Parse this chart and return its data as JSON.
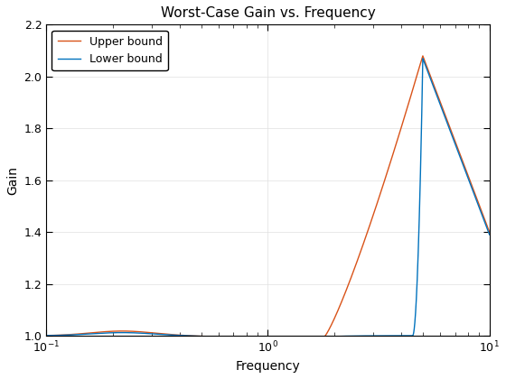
{
  "title": "Worst-Case Gain vs. Frequency",
  "xlabel": "Frequency",
  "ylabel": "Gain",
  "xlim": [
    0.1,
    10
  ],
  "ylim": [
    1.0,
    2.2
  ],
  "yticks": [
    1.0,
    1.2,
    1.4,
    1.6,
    1.8,
    2.0,
    2.2
  ],
  "lower_bound_color": "#0072BD",
  "upper_bound_color": "#D95319",
  "lower_bound_label": "Lower bound",
  "upper_bound_label": "Upper bound",
  "background_color": "#FFFFFF",
  "title_fontsize": 11,
  "label_fontsize": 10,
  "legend_fontsize": 9,
  "tick_fontsize": 9
}
